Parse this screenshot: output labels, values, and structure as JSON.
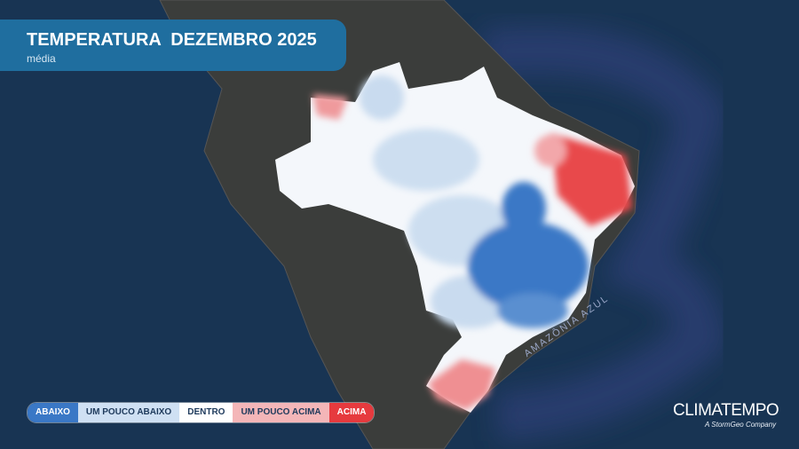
{
  "header": {
    "title": "TEMPERATURA  DEZEMBRO 2025",
    "subtitle": "média"
  },
  "legend": {
    "items": [
      {
        "label": "ABAIXO",
        "color": "#3a78c6"
      },
      {
        "label": "UM POUCO ABAIXO",
        "color": "#cfe0f3"
      },
      {
        "label": "DENTRO",
        "color": "#ffffff"
      },
      {
        "label": "UM POUCO ACIMA",
        "color": "#f4b6b8"
      },
      {
        "label": "ACIMA",
        "color": "#e63a3e"
      }
    ]
  },
  "map": {
    "label": "AMAZÔNIA AZUL"
  },
  "brand": {
    "name": "CLIMATEMPO",
    "tagline": "A StormGeo Company"
  }
}
